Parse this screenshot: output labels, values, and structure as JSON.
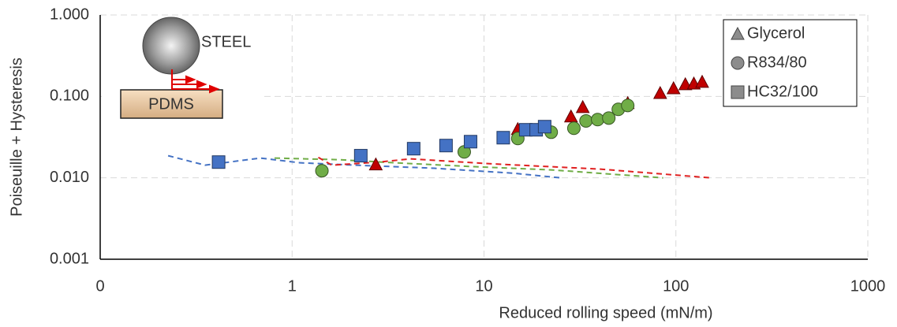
{
  "chart_data": {
    "type": "scatter",
    "x_label": "Reduced rolling speed (mN/m)",
    "y_label": "Poiseuille + Hysteresis",
    "log_x": true,
    "log_y": true,
    "grid": true,
    "legend": "upper right",
    "legend_marker_color": "#8c8c8c",
    "xlim": [
      0.1,
      1000
    ],
    "xticks": [
      {
        "value": 0.1,
        "label": "0"
      },
      1,
      10,
      100,
      1000
    ],
    "ylim": [
      0.001,
      1
    ],
    "yticks": [
      {
        "value": 0.001,
        "label": "0.001"
      },
      {
        "value": 0.01,
        "label": "0.010"
      },
      {
        "value": 0.1,
        "label": "0.100"
      },
      {
        "value": 1,
        "label": "1.000"
      }
    ],
    "series": [
      {
        "name": "Glycerol",
        "marker": "triangle",
        "color": "#c00000",
        "x": [
          2.73,
          15.0,
          28.4,
          32.7,
          56.1,
          82.8,
          97.2,
          112,
          124,
          137
        ],
        "values": [
          0.0146,
          0.0397,
          0.0567,
          0.074,
          0.0828,
          0.11,
          0.126,
          0.141,
          0.144,
          0.151
        ]
      },
      {
        "name": "R834/80",
        "marker": "circle",
        "color": "#70ad47",
        "x": [
          1.43,
          7.89,
          15.0,
          22.4,
          29.4,
          34.0,
          39.1,
          44.7,
          50.1,
          56.1
        ],
        "values": [
          0.0122,
          0.0208,
          0.0304,
          0.0363,
          0.0406,
          0.05,
          0.0519,
          0.0542,
          0.0693,
          0.0774
        ]
      },
      {
        "name": "HC32/100",
        "marker": "square",
        "color": "#4472c4",
        "x": [
          0.414,
          2.28,
          4.3,
          6.34,
          8.51,
          12.6,
          16.5,
          18.7,
          20.7
        ],
        "values": [
          0.0156,
          0.0187,
          0.0228,
          0.0249,
          0.0278,
          0.0311,
          0.0389,
          0.0389,
          0.0425
        ]
      }
    ],
    "lines": [
      {
        "color": "#4472c4",
        "x": [
          0.226,
          0.352,
          0.684,
          1.1,
          2.13,
          5.51,
          14.2,
          25.1
        ],
        "values": [
          0.0187,
          0.0143,
          0.0175,
          0.0153,
          0.0143,
          0.0131,
          0.0114,
          0.01
        ]
      },
      {
        "color": "#70ad47",
        "x": [
          0.81,
          1.77,
          3.43,
          8.85,
          22.8,
          85.9
        ],
        "values": [
          0.0175,
          0.0167,
          0.0153,
          0.0137,
          0.0125,
          0.01
        ]
      },
      {
        "color": "#e02020",
        "x": [
          1.37,
          1.61,
          2.84,
          4.14,
          10.7,
          40.3,
          152
        ],
        "values": [
          0.0178,
          0.0143,
          0.0156,
          0.0171,
          0.0149,
          0.0128,
          0.01
        ]
      }
    ],
    "inset": {
      "ball_label": "STEEL",
      "substrate_label": "PDMS"
    }
  }
}
